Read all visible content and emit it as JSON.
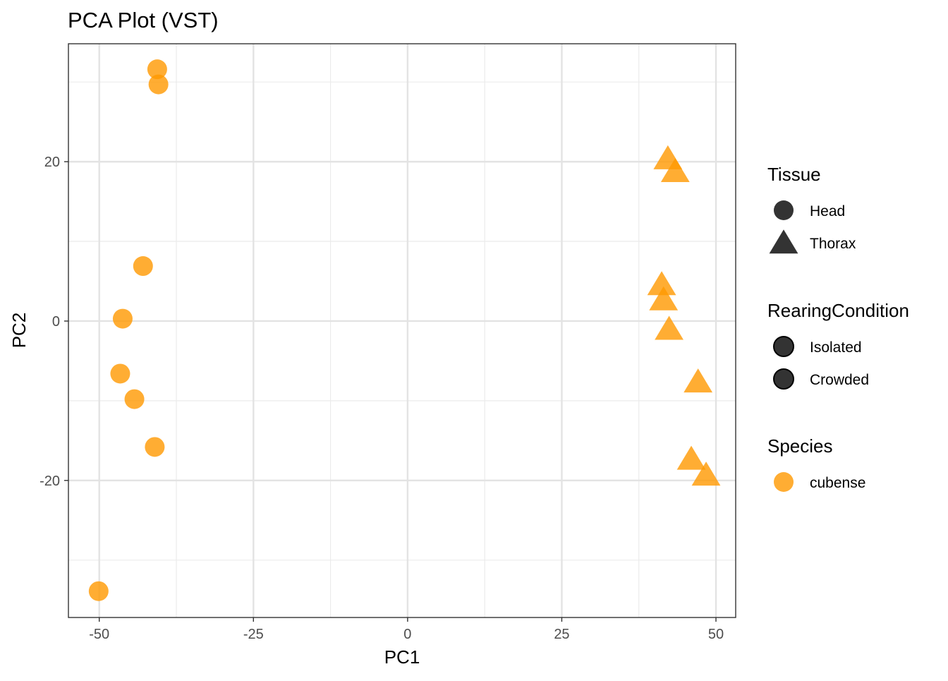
{
  "chart_data": {
    "type": "scatter",
    "title": "PCA Plot (VST)",
    "xlabel": "PC1",
    "ylabel": "PC2",
    "xlim": [
      -55.0,
      53.2
    ],
    "ylim": [
      -37.2,
      34.8
    ],
    "x_ticks": [
      -50,
      -25,
      0,
      25,
      50
    ],
    "x_tick_labels": [
      "-50",
      "-25",
      "0",
      "25",
      "50"
    ],
    "y_ticks": [
      -20,
      0,
      20
    ],
    "y_tick_labels": [
      "-20",
      "0",
      "20"
    ],
    "x_minor": [
      -37.5,
      -12.5,
      12.5,
      37.5
    ],
    "y_minor": [
      -30,
      -10,
      10,
      30
    ],
    "grid": true,
    "point_color": "#FF9900",
    "point_alpha": 0.8,
    "series": [
      {
        "name": "Head",
        "shape": "circle",
        "points": [
          [
            -40.6,
            31.6
          ],
          [
            -40.4,
            29.7
          ],
          [
            -42.9,
            6.9
          ],
          [
            -46.2,
            0.3
          ],
          [
            -46.6,
            -6.6
          ],
          [
            -44.3,
            -9.8
          ],
          [
            -41.0,
            -15.8
          ],
          [
            -50.1,
            -33.9
          ]
        ]
      },
      {
        "name": "Thorax",
        "shape": "triangle",
        "points": [
          [
            42.2,
            20.4
          ],
          [
            43.4,
            18.8
          ],
          [
            41.2,
            4.6
          ],
          [
            41.5,
            2.7
          ],
          [
            42.4,
            -1.0
          ],
          [
            47.1,
            -7.6
          ],
          [
            46.0,
            -17.3
          ],
          [
            48.4,
            -19.3
          ]
        ]
      }
    ],
    "legend": {
      "placement": "right",
      "groups": [
        {
          "title": "Tissue",
          "items": [
            {
              "label": "Head",
              "shape": "circle",
              "color": "#333333"
            },
            {
              "label": "Thorax",
              "shape": "triangle",
              "color": "#333333"
            }
          ]
        },
        {
          "title": "RearingCondition",
          "items": [
            {
              "label": "Isolated",
              "shape": "circle-outline",
              "color": "#333333"
            },
            {
              "label": "Crowded",
              "shape": "circle-outline",
              "color": "#333333"
            }
          ]
        },
        {
          "title": "Species",
          "items": [
            {
              "label": "cubense",
              "shape": "circle",
              "color": "#FF9900"
            }
          ]
        }
      ]
    }
  }
}
